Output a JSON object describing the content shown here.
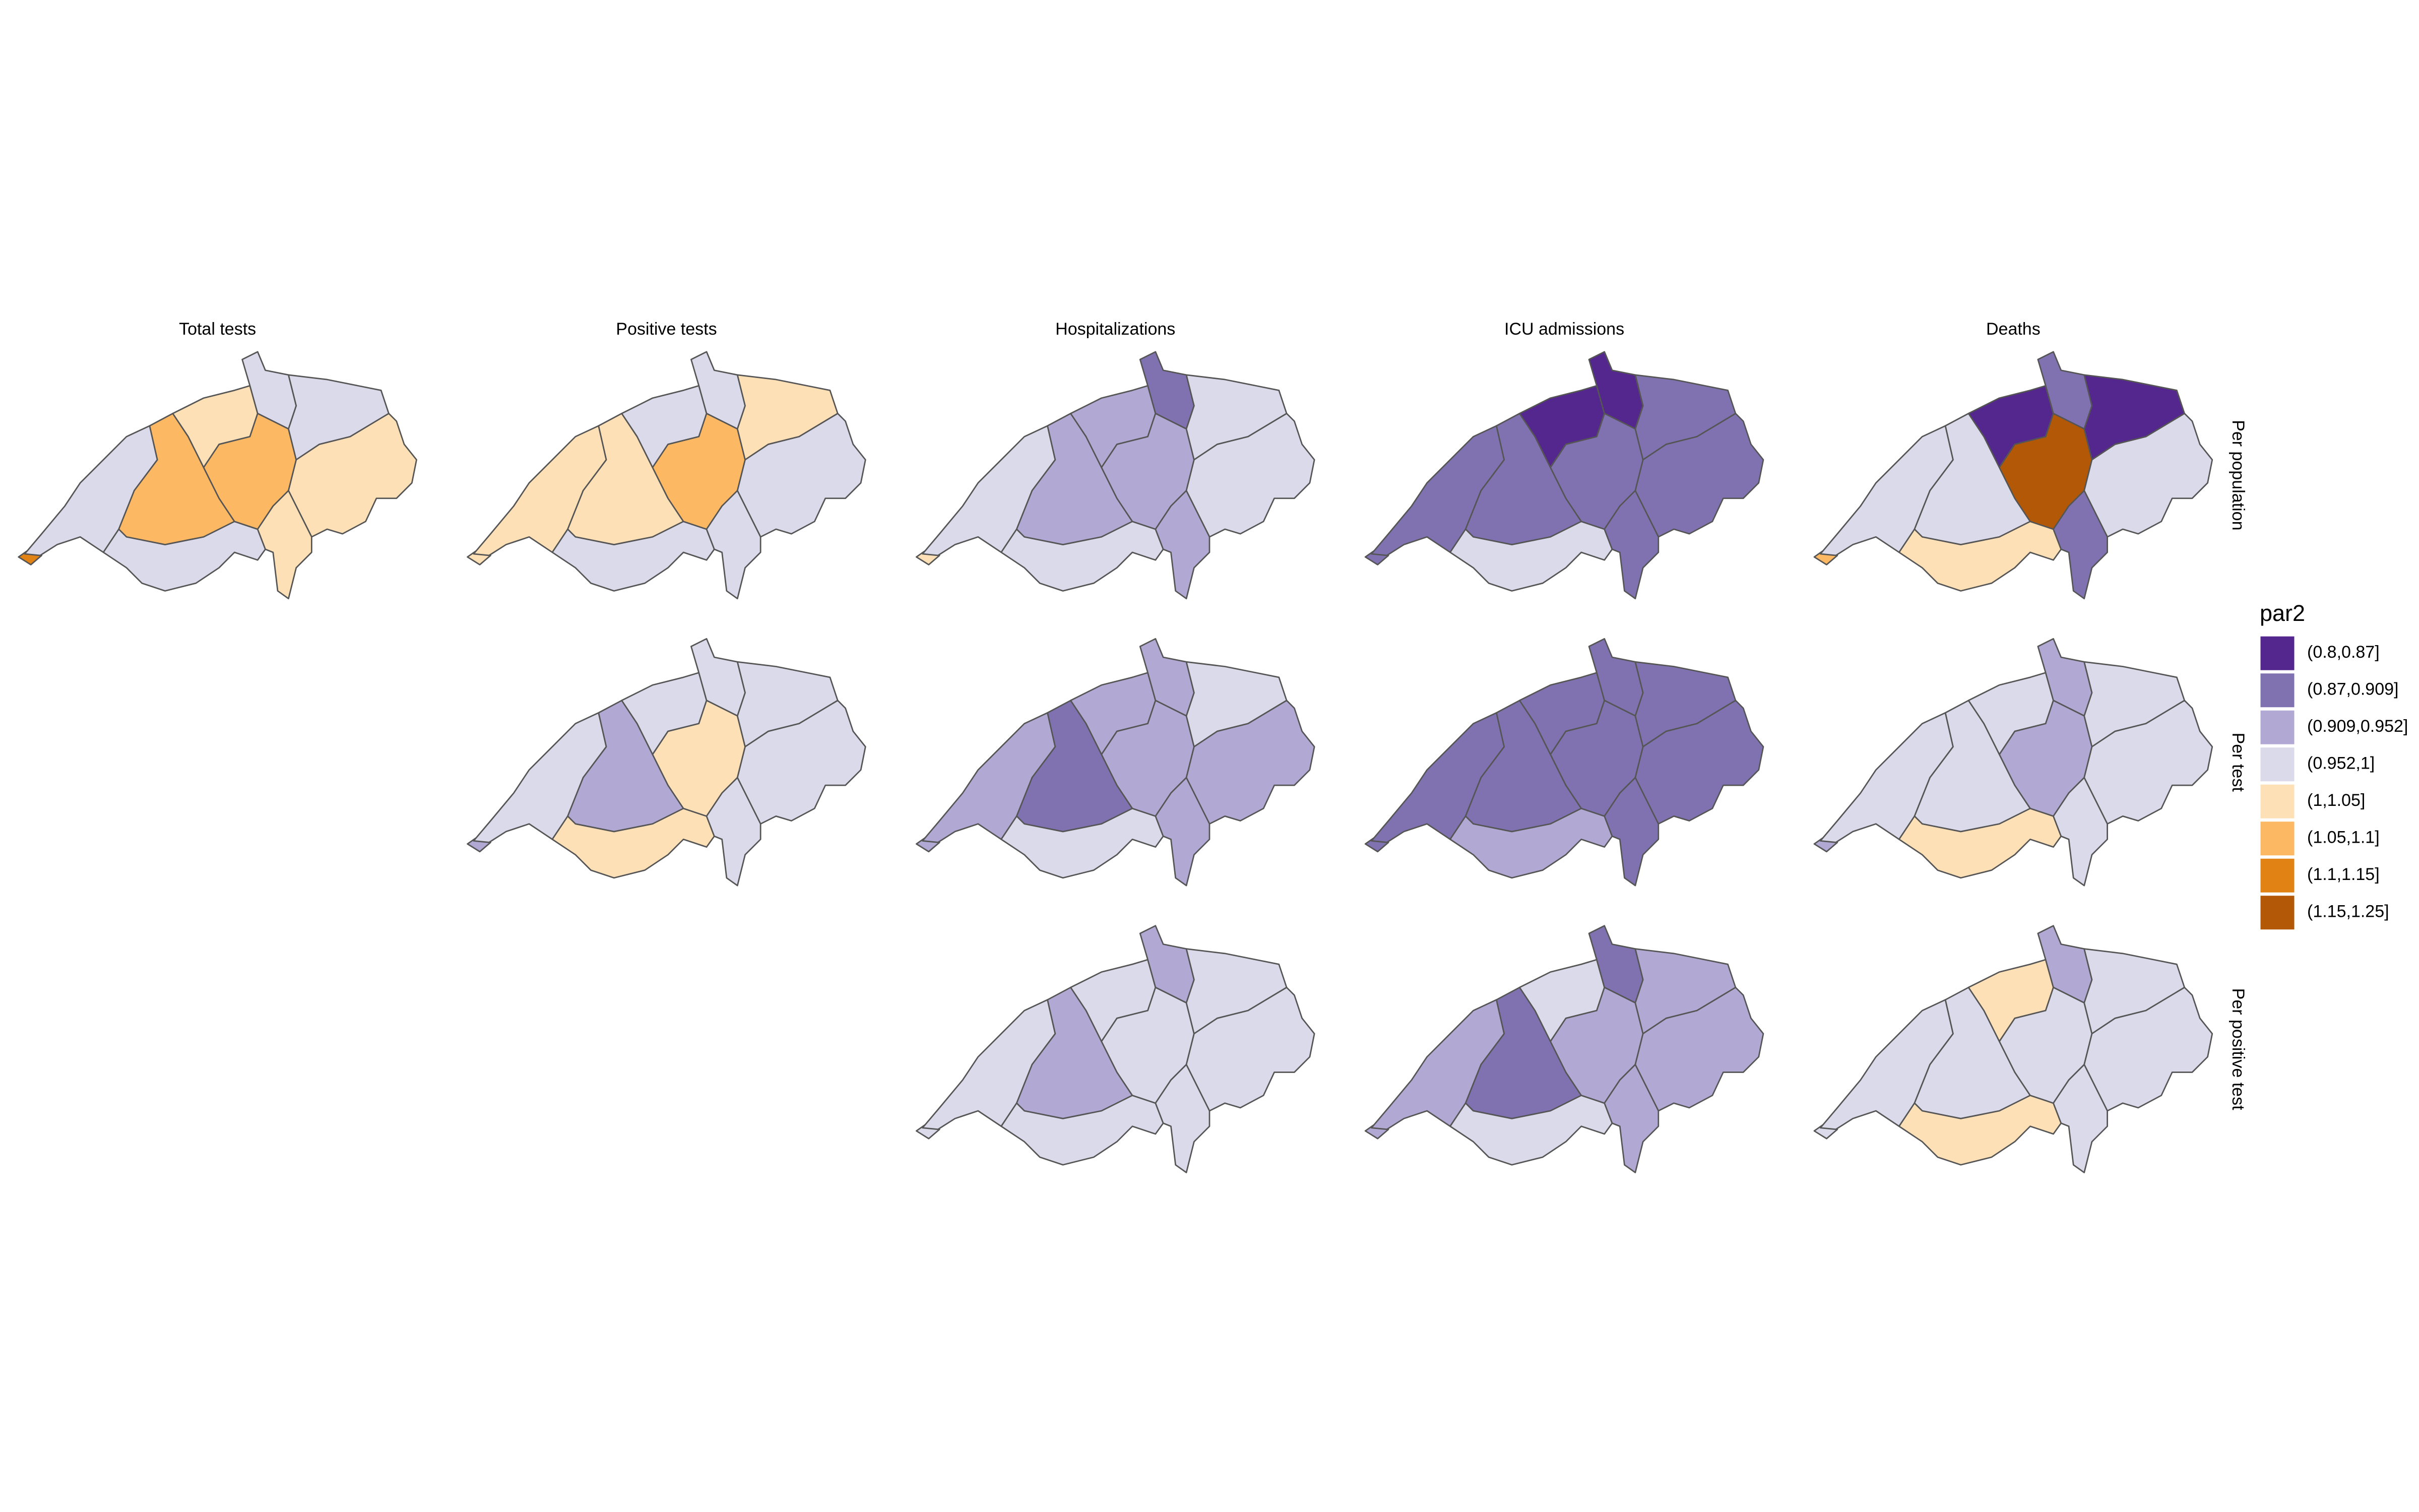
{
  "columns": [
    "Total tests",
    "Positive tests",
    "Hospitalizations",
    "ICU admissions",
    "Deaths"
  ],
  "rows": [
    "Per population",
    "Per test",
    "Per positive test"
  ],
  "legend": {
    "title": "par2",
    "items": [
      {
        "label": "(0.8,0.87]",
        "color": "#54278f"
      },
      {
        "label": "(0.87,0.909]",
        "color": "#8072b0"
      },
      {
        "label": "(0.909,0.952]",
        "color": "#b1a9d3"
      },
      {
        "label": "(0.952,1]",
        "color": "#dadaeb"
      },
      {
        "label": "(1,1.05]",
        "color": "#fee0b6"
      },
      {
        "label": "(1.05,1.1]",
        "color": "#fdb863"
      },
      {
        "label": "(1.1,1.15]",
        "color": "#e08214"
      },
      {
        "label": "(1.15,1.25]",
        "color": "#b35806"
      }
    ]
  },
  "grid": [
    [
      [
        "#e08214",
        "#dadaeb",
        "#fdb863",
        "#dadaeb",
        "#fee0b6",
        "#dadaeb",
        "#fdb863",
        "#dadaeb",
        "#fee0b6",
        "#fee0b6"
      ],
      [
        "#fee0b6",
        "#fee0b6",
        "#fee0b6",
        "#dadaeb",
        "#dadaeb",
        "#dadaeb",
        "#fdb863",
        "#fee0b6",
        "#dadaeb",
        "#dadaeb"
      ],
      [
        "#fee0b6",
        "#dadaeb",
        "#b1a9d3",
        "#dadaeb",
        "#b1a9d3",
        "#8072b0",
        "#b1a9d3",
        "#dadaeb",
        "#dadaeb",
        "#b1a9d3"
      ],
      [
        "#8072b0",
        "#8072b0",
        "#8072b0",
        "#dadaeb",
        "#54278f",
        "#54278f",
        "#8072b0",
        "#8072b0",
        "#8072b0",
        "#8072b0"
      ],
      [
        "#fdb863",
        "#dadaeb",
        "#dadaeb",
        "#fee0b6",
        "#54278f",
        "#8072b0",
        "#b35806",
        "#54278f",
        "#dadaeb",
        "#8072b0"
      ]
    ],
    [
      null,
      [
        "#b1a9d3",
        "#dadaeb",
        "#b1a9d3",
        "#fee0b6",
        "#dadaeb",
        "#dadaeb",
        "#fee0b6",
        "#dadaeb",
        "#dadaeb",
        "#dadaeb"
      ],
      [
        "#b1a9d3",
        "#b1a9d3",
        "#8072b0",
        "#dadaeb",
        "#b1a9d3",
        "#b1a9d3",
        "#b1a9d3",
        "#dadaeb",
        "#b1a9d3",
        "#b1a9d3"
      ],
      [
        "#8072b0",
        "#8072b0",
        "#8072b0",
        "#b1a9d3",
        "#8072b0",
        "#8072b0",
        "#8072b0",
        "#8072b0",
        "#8072b0",
        "#8072b0"
      ],
      [
        "#b1a9d3",
        "#dadaeb",
        "#dadaeb",
        "#fee0b6",
        "#dadaeb",
        "#b1a9d3",
        "#b1a9d3",
        "#dadaeb",
        "#dadaeb",
        "#dadaeb"
      ]
    ],
    [
      null,
      null,
      [
        "#dadaeb",
        "#dadaeb",
        "#b1a9d3",
        "#dadaeb",
        "#dadaeb",
        "#b1a9d3",
        "#dadaeb",
        "#dadaeb",
        "#dadaeb",
        "#dadaeb"
      ],
      [
        "#b1a9d3",
        "#b1a9d3",
        "#8072b0",
        "#dadaeb",
        "#dadaeb",
        "#8072b0",
        "#b1a9d3",
        "#b1a9d3",
        "#b1a9d3",
        "#b1a9d3"
      ],
      [
        "#dadaeb",
        "#dadaeb",
        "#dadaeb",
        "#fee0b6",
        "#fee0b6",
        "#b1a9d3",
        "#dadaeb",
        "#dadaeb",
        "#dadaeb",
        "#dadaeb"
      ]
    ]
  ]
}
